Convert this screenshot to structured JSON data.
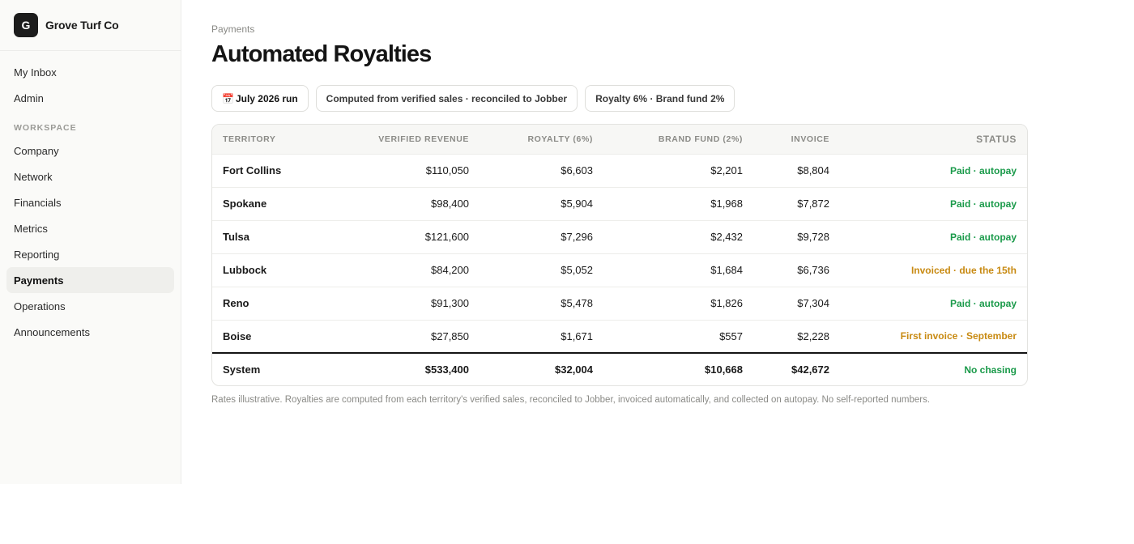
{
  "brand": {
    "logo_letter": "G",
    "name": "Grove Turf Co"
  },
  "sidebar": {
    "top_items": [
      {
        "label": "My Inbox"
      },
      {
        "label": "Admin"
      }
    ],
    "section_label": "WORKSPACE",
    "items": [
      {
        "label": "Company"
      },
      {
        "label": "Network"
      },
      {
        "label": "Financials"
      },
      {
        "label": "Metrics"
      },
      {
        "label": "Reporting"
      },
      {
        "label": "Payments",
        "active": true
      },
      {
        "label": "Operations"
      },
      {
        "label": "Announcements"
      }
    ]
  },
  "page": {
    "breadcrumb": "Payments",
    "title": "Automated Royalties"
  },
  "pills": {
    "run_icon": "📅",
    "run_label": "July 2026 run",
    "source_label": "Computed from verified sales · reconciled to Jobber",
    "rates_label": "Royalty 6% · Brand fund 2%"
  },
  "table": {
    "headers": {
      "territory": "TERRITORY",
      "revenue": "VERIFIED REVENUE",
      "royalty": "ROYALTY (6%)",
      "fund": "BRAND FUND (2%)",
      "invoice": "INVOICE",
      "status": "STATUS"
    },
    "rows": [
      {
        "territory": "Fort Collins",
        "revenue": "$110,050",
        "royalty": "$6,603",
        "fund": "$2,201",
        "invoice": "$8,804",
        "status": "Paid · autopay",
        "status_color": "#1a9a4a"
      },
      {
        "territory": "Spokane",
        "revenue": "$98,400",
        "royalty": "$5,904",
        "fund": "$1,968",
        "invoice": "$7,872",
        "status": "Paid · autopay",
        "status_color": "#1a9a4a"
      },
      {
        "territory": "Tulsa",
        "revenue": "$121,600",
        "royalty": "$7,296",
        "fund": "$2,432",
        "invoice": "$9,728",
        "status": "Paid · autopay",
        "status_color": "#1a9a4a"
      },
      {
        "territory": "Lubbock",
        "revenue": "$84,200",
        "royalty": "$5,052",
        "fund": "$1,684",
        "invoice": "$6,736",
        "status": "Invoiced · due the 15th",
        "status_color": "#c88a12"
      },
      {
        "territory": "Reno",
        "revenue": "$91,300",
        "royalty": "$5,478",
        "fund": "$1,826",
        "invoice": "$7,304",
        "status": "Paid · autopay",
        "status_color": "#1a9a4a"
      },
      {
        "territory": "Boise",
        "revenue": "$27,850",
        "royalty": "$1,671",
        "fund": "$557",
        "invoice": "$2,228",
        "status": "First invoice · September",
        "status_color": "#c88a12"
      }
    ],
    "total": {
      "territory": "System",
      "revenue": "$533,400",
      "royalty": "$32,004",
      "fund": "$10,668",
      "invoice": "$42,672",
      "status": "No chasing",
      "status_color": "#1a9a4a"
    }
  },
  "footnote": "Rates illustrative. Royalties are computed from each territory's verified sales, reconciled to Jobber, invoiced automatically, and collected on autopay. No self-reported numbers."
}
